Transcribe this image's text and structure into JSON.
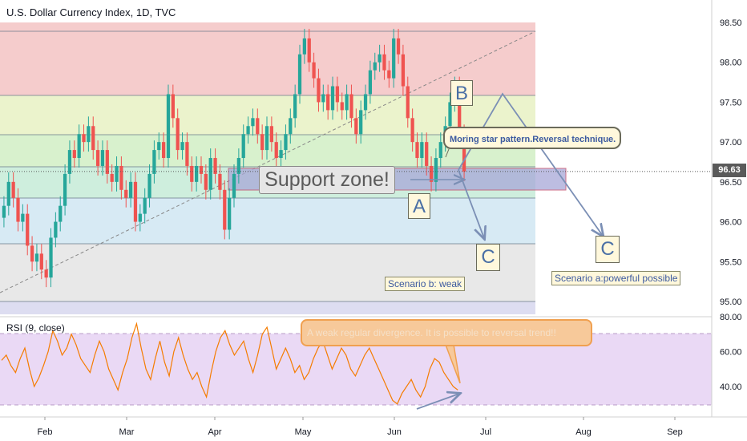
{
  "header": {
    "title": "U.S. Dollar Currency Index, 1D, TVC"
  },
  "rsi": {
    "title": "RSI (9, close)"
  },
  "price_tag": "96.63",
  "annotations": {
    "support": "Support zone!",
    "callout": "Moring star pattern.Reversal technique.",
    "rsi_callout": "A weak regular divergence. It is possible to reversal trend!!",
    "scenario_b": "Scenario b: weak",
    "scenario_a": "Scenario a:powerful possible",
    "label_a": "A",
    "label_b": "B",
    "label_c1": "C",
    "label_c2": "C"
  },
  "colors": {
    "up": "#26a69a",
    "down": "#ef5350",
    "rsi": "#f57c00",
    "arrow": "#7b8fb5"
  },
  "chart_data": [
    {
      "type": "candlestick",
      "title": "U.S. Dollar Currency Index, 1D, TVC",
      "ylim": [
        94.8,
        98.6
      ],
      "y_ticks": [
        95.0,
        95.5,
        96.0,
        96.5,
        97.0,
        97.5,
        98.0,
        98.5
      ],
      "x_ticks": [
        "Feb",
        "Mar",
        "Apr",
        "May",
        "Jun",
        "Jul",
        "Aug",
        "Sep"
      ],
      "last_price": 96.63,
      "closes": [
        96.2,
        96.5,
        96.3,
        96.0,
        96.1,
        95.7,
        95.5,
        95.6,
        95.4,
        95.3,
        95.8,
        96.0,
        96.2,
        96.6,
        96.9,
        96.8,
        97.1,
        97.0,
        97.2,
        96.9,
        96.7,
        96.9,
        96.6,
        96.5,
        96.7,
        96.4,
        96.3,
        96.5,
        96.0,
        96.1,
        96.3,
        96.6,
        96.9,
        97.0,
        96.8,
        97.6,
        97.3,
        96.9,
        97.0,
        96.7,
        96.5,
        96.7,
        96.6,
        96.4,
        96.8,
        96.6,
        96.4,
        95.9,
        96.3,
        96.6,
        96.8,
        97.1,
        97.2,
        97.3,
        97.1,
        96.9,
        97.2,
        97.0,
        96.8,
        96.9,
        97.1,
        97.3,
        97.6,
        98.1,
        98.3,
        98.0,
        97.8,
        97.5,
        97.6,
        97.4,
        97.7,
        97.5,
        97.4,
        97.6,
        97.3,
        97.1,
        97.4,
        97.6,
        97.9,
        98.0,
        98.1,
        97.9,
        97.8,
        98.3,
        98.1,
        97.7,
        97.3,
        97.0,
        96.8,
        97.0,
        96.7,
        96.5,
        96.8,
        97.0,
        97.2,
        97.5,
        97.7,
        97.1,
        96.63
      ]
    },
    {
      "type": "line",
      "title": "RSI (9, close)",
      "ylim": [
        25,
        82
      ],
      "y_ticks": [
        40.0,
        60.0,
        80.0
      ],
      "levels": [
        30,
        70
      ],
      "values": [
        55,
        58,
        52,
        48,
        56,
        62,
        50,
        40,
        45,
        52,
        60,
        72,
        66,
        58,
        62,
        70,
        64,
        56,
        52,
        48,
        58,
        66,
        60,
        50,
        44,
        38,
        48,
        56,
        68,
        76,
        62,
        50,
        44,
        56,
        66,
        54,
        46,
        60,
        68,
        58,
        50,
        44,
        48,
        40,
        34,
        48,
        60,
        68,
        72,
        64,
        58,
        62,
        66,
        56,
        48,
        58,
        70,
        74,
        62,
        50,
        56,
        62,
        56,
        48,
        52,
        44,
        48,
        56,
        62,
        66,
        58,
        50,
        56,
        62,
        58,
        50,
        46,
        52,
        58,
        62,
        56,
        50,
        44,
        38,
        32,
        30,
        36,
        40,
        44,
        38,
        34,
        40,
        50,
        56,
        54,
        48,
        44,
        40,
        38
      ]
    }
  ]
}
